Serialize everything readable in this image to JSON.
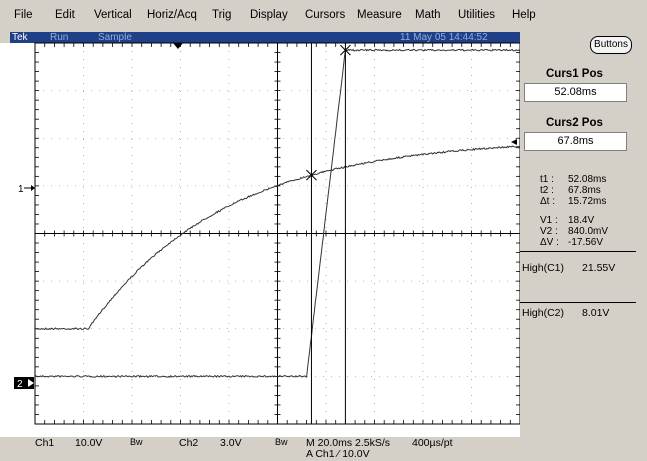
{
  "menu": {
    "file": "File",
    "edit": "Edit",
    "vertical": "Vertical",
    "horiz": "Horiz/Acq",
    "trig": "Trig",
    "display": "Display",
    "cursors": "Cursors",
    "measure": "Measure",
    "math": "Math",
    "utilities": "Utilities",
    "help": "Help"
  },
  "status": {
    "brand": "Tek",
    "run": "Run",
    "mode": "Sample",
    "datetime": "11 May 05 14:44:52"
  },
  "right_panel": {
    "buttons_label": "Buttons",
    "curs1_title": "Curs1 Pos",
    "curs1_value": "52.08ms",
    "curs2_title": "Curs2 Pos",
    "curs2_value": "67.8ms",
    "t1_label": "t1 :",
    "t1_value": "52.08ms",
    "t2_label": "t2 :",
    "t2_value": "67.8ms",
    "dt_label": "Δt :",
    "dt_value": "15.72ms",
    "v1_label": "V1 :",
    "v1_value": "18.4V",
    "v2_label": "V2 :",
    "v2_value": "840.0mV",
    "dv_label": "ΔV :",
    "dv_value": "-17.56V",
    "meas1_label": "High(C1)",
    "meas1_value": "21.55V",
    "meas2_label": "High(C2)",
    "meas2_value": "8.01V"
  },
  "markers": {
    "ch1": "1",
    "ch2": "2"
  },
  "bottom": {
    "ch1": "Ch1",
    "ch1_scale": "10.0V",
    "bw1": "Bw",
    "ch2": "Ch2",
    "ch2_scale": "3.0V",
    "bw2": "Bw",
    "timebase": "M 20.0ms 2.5kS/s",
    "resolution": "400µs/pt",
    "trigger": "A  Ch1  ⁄  10.0V"
  },
  "colors": {
    "screen_bg": "#ffffff",
    "status_bg": "#1f3f86",
    "trace": "#333333",
    "window_bg": "#d4d0c8"
  },
  "chart_data": {
    "type": "line",
    "series": [
      {
        "curve": "rising-exponential",
        "baseline_div": -2.0,
        "rise_start_div": -3.9,
        "final_div": 2.0,
        "tau_div": 2.8
      },
      {
        "curve": "linear-ramp",
        "baseline_div": -3.0,
        "ramp_start_div": 0.6,
        "ramp_end_div": 1.4,
        "final_div": 3.85
      }
    ],
    "cursors_div": [
      0.7,
      1.4
    ],
    "x_range_div": [
      -5,
      5
    ],
    "y_range_div": [
      -4,
      4
    ],
    "grid": true
  }
}
